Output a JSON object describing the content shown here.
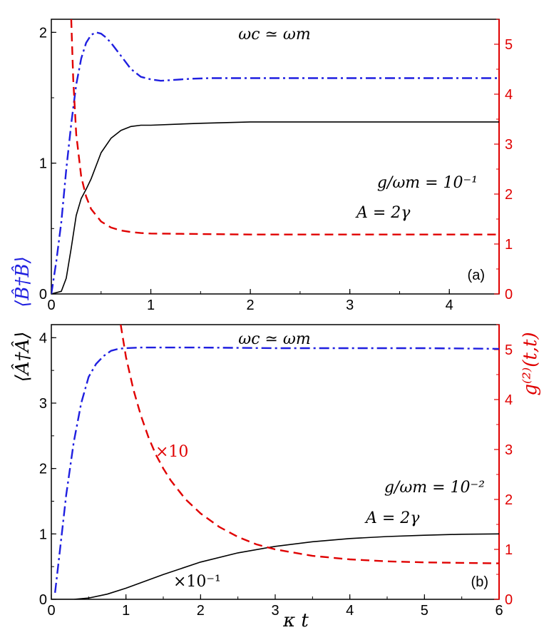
{
  "chart_data": [
    {
      "type": "line",
      "panel_label": "(a)",
      "xlim": [
        0,
        4.5
      ],
      "ylim_left": [
        0,
        2.1
      ],
      "ylim_right": [
        0,
        5.5
      ],
      "x_ticks": [
        "0",
        "1",
        "2",
        "3",
        "4"
      ],
      "y_left_ticks": [
        "0",
        "1",
        "2"
      ],
      "y_right_ticks": [
        "0",
        "1",
        "2",
        "3",
        "4",
        "5"
      ],
      "annotations": {
        "resonance": "ωc ≃ ωm",
        "coupling": "g/ωm = 10⁻¹",
        "drive": "A = 2γ"
      },
      "series": [
        {
          "axis": "left",
          "color": "#000000",
          "style": "solid",
          "x": [
            0,
            0.1,
            0.15,
            0.2,
            0.25,
            0.3,
            0.35,
            0.4,
            0.5,
            0.6,
            0.7,
            0.8,
            0.9,
            1.0,
            1.5,
            2.0,
            3.0,
            4.0,
            4.5
          ],
          "y": [
            0,
            0.02,
            0.12,
            0.35,
            0.6,
            0.73,
            0.8,
            0.88,
            1.08,
            1.19,
            1.25,
            1.28,
            1.29,
            1.29,
            1.305,
            1.315,
            1.315,
            1.315,
            1.315
          ]
        },
        {
          "axis": "left",
          "color": "#1f1fe0",
          "style": "dashdot",
          "x": [
            0,
            0.05,
            0.1,
            0.15,
            0.2,
            0.25,
            0.3,
            0.35,
            0.4,
            0.45,
            0.5,
            0.55,
            0.6,
            0.7,
            0.8,
            0.9,
            1.0,
            1.1,
            1.2,
            1.4,
            1.6,
            2.0,
            3.0,
            4.0,
            4.5
          ],
          "y": [
            0,
            0.25,
            0.55,
            0.95,
            1.3,
            1.6,
            1.8,
            1.92,
            1.98,
            2.0,
            1.99,
            1.96,
            1.92,
            1.82,
            1.72,
            1.66,
            1.64,
            1.63,
            1.635,
            1.645,
            1.65,
            1.65,
            1.65,
            1.65,
            1.65
          ]
        },
        {
          "axis": "right",
          "color": "#e00000",
          "style": "dashed",
          "x": [
            0.2,
            0.22,
            0.25,
            0.3,
            0.35,
            0.4,
            0.5,
            0.6,
            0.7,
            0.8,
            0.9,
            1.0,
            1.5,
            2.0,
            3.0,
            4.0,
            4.5
          ],
          "y": [
            5.5,
            4.3,
            3.2,
            2.35,
            1.95,
            1.7,
            1.45,
            1.33,
            1.27,
            1.24,
            1.22,
            1.21,
            1.2,
            1.19,
            1.19,
            1.19,
            1.19
          ]
        }
      ]
    },
    {
      "type": "line",
      "panel_label": "(b)",
      "xlim": [
        0,
        6
      ],
      "ylim_left": [
        0,
        4.2
      ],
      "ylim_right": [
        0,
        5.5
      ],
      "x_ticks": [
        "0",
        "1",
        "2",
        "3",
        "4",
        "5",
        "6"
      ],
      "y_left_ticks": [
        "0",
        "1",
        "2",
        "3",
        "4"
      ],
      "y_right_ticks": [
        "0",
        "1",
        "2",
        "3",
        "4",
        "5"
      ],
      "annotations": {
        "resonance": "ωc ≃ ωm",
        "coupling": "g/ωm = 10⁻²",
        "drive": "A = 2γ",
        "scale_red": "×10",
        "scale_black": "×10⁻¹"
      },
      "series": [
        {
          "axis": "left",
          "color": "#000000",
          "style": "solid",
          "x": [
            0,
            0.3,
            0.5,
            0.75,
            1.0,
            1.5,
            2.0,
            2.5,
            3.0,
            3.5,
            4.0,
            4.5,
            5.0,
            5.5,
            6.0
          ],
          "y": [
            0,
            0.0,
            0.02,
            0.08,
            0.17,
            0.38,
            0.57,
            0.71,
            0.81,
            0.88,
            0.93,
            0.96,
            0.98,
            0.995,
            1.0
          ]
        },
        {
          "axis": "left",
          "color": "#1f1fe0",
          "style": "dashdot",
          "x": [
            0.05,
            0.1,
            0.15,
            0.2,
            0.3,
            0.4,
            0.5,
            0.6,
            0.7,
            0.8,
            0.9,
            1.0,
            1.2,
            1.5,
            2.0,
            3.0,
            4.0,
            5.0,
            6.0
          ],
          "y": [
            0.1,
            0.6,
            1.1,
            1.6,
            2.4,
            3.0,
            3.4,
            3.6,
            3.72,
            3.8,
            3.83,
            3.84,
            3.85,
            3.85,
            3.85,
            3.84,
            3.84,
            3.84,
            3.83
          ]
        },
        {
          "axis": "right",
          "color": "#e00000",
          "style": "dashed",
          "x": [
            0.93,
            1.0,
            1.1,
            1.2,
            1.3,
            1.4,
            1.5,
            1.6,
            1.8,
            2.0,
            2.25,
            2.5,
            2.75,
            3.0,
            3.5,
            4.0,
            4.5,
            5.0,
            5.5,
            6.0
          ],
          "y": [
            5.5,
            4.85,
            4.2,
            3.68,
            3.25,
            2.9,
            2.62,
            2.38,
            2.0,
            1.72,
            1.45,
            1.25,
            1.1,
            1.0,
            0.87,
            0.8,
            0.76,
            0.74,
            0.73,
            0.72
          ]
        }
      ]
    }
  ],
  "axis_labels": {
    "x_label": "κ t",
    "y_left_a": "⟨B̂†B̂⟩",
    "y_left_b": "⟨Â†Â⟩",
    "y_right": "g⁽²⁾(t,t)"
  }
}
